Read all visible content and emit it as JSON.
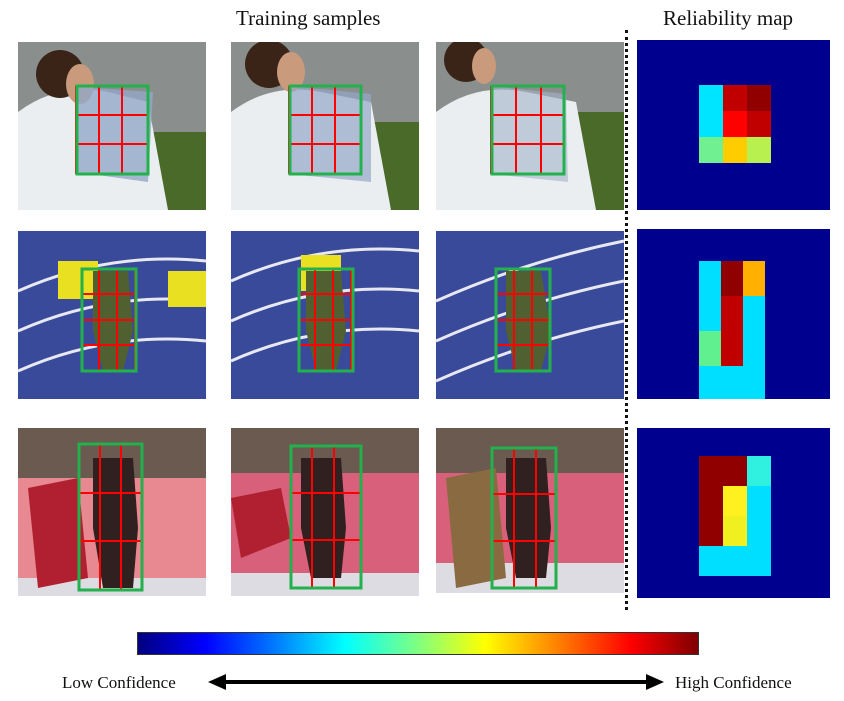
{
  "headers": {
    "training_samples": "Training samples",
    "reliability_map": "Reliability map"
  },
  "legend": {
    "low_label": "Low Confidence",
    "high_label": "High Confidence"
  },
  "colors": {
    "box_outline": "#22b14c",
    "grid_lines": "#ff0000",
    "map_background": "#00008f"
  },
  "reliability_maps": [
    {
      "rows": 3,
      "cols": 3,
      "cells": [
        [
          "#00e5ff",
          "#c00000",
          "#900000"
        ],
        [
          "#00e5ff",
          "#ff0000",
          "#c00000"
        ],
        [
          "#70f090",
          "#ffcc00",
          "#b8f050"
        ]
      ]
    },
    {
      "rows": 4,
      "cols": 3,
      "cells": [
        [
          "#00dfff",
          "#900000",
          "#ffb000"
        ],
        [
          "#00dfff",
          "#c00000",
          "#00dfff"
        ],
        [
          "#60f090",
          "#c00000",
          "#00dfff"
        ],
        [
          "#00dfff",
          "#00dfff",
          "#00dfff"
        ]
      ]
    },
    {
      "rows": 4,
      "cols": 3,
      "cells": [
        [
          "#900000",
          "#900000",
          "#30f0e0"
        ],
        [
          "#900000",
          "#fff020",
          "#00dfff"
        ],
        [
          "#900000",
          "#f0f020",
          "#00dfff"
        ],
        [
          "#00dfff",
          "#00dfff",
          "#00dfff"
        ]
      ]
    }
  ]
}
